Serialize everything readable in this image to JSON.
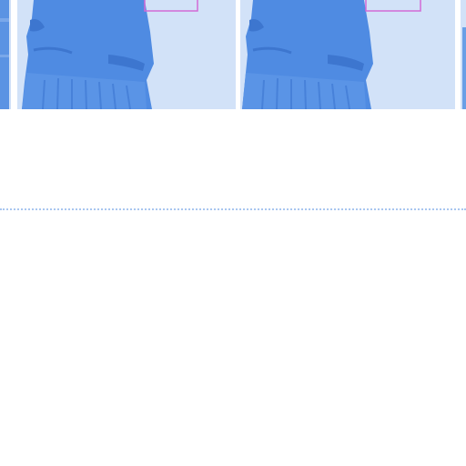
{
  "gallery": {
    "thumbnails": [
      {
        "icon": "photo-thumbnail-partial",
        "selected": false
      },
      {
        "icon": "photo-thumbnail-statue",
        "selected": true
      },
      {
        "icon": "photo-thumbnail-statue",
        "selected": true
      },
      {
        "icon": "photo-thumbnail-partial",
        "selected": false
      }
    ],
    "selection_color": "#d36bd6"
  },
  "colors": {
    "thumbnail_tint": "#4a86e0",
    "thumbnail_background": "#d6e4f8",
    "divider": "#a9c6f0",
    "page_background": "#ffffff"
  }
}
